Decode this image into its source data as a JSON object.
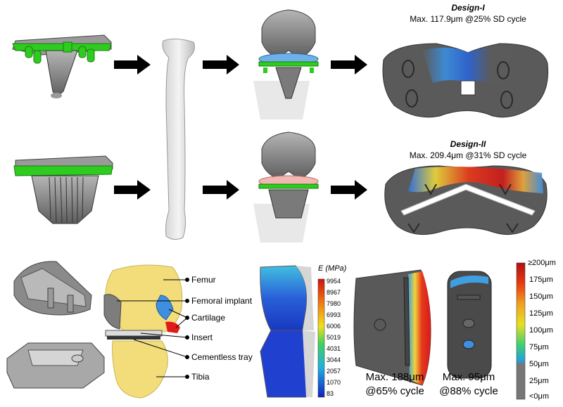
{
  "designs": [
    {
      "title": "Design-I",
      "result": "Max. 117.9μm @25% SD cycle"
    },
    {
      "title": "Design-II",
      "result": "Max. 209.4μm @31% SD cycle"
    }
  ],
  "anatomy_labels": [
    "Femur",
    "Femoral implant",
    "Cartilage",
    "Insert",
    "Cementless tray",
    "Tibia"
  ],
  "modulus_legend": {
    "title": "E (MPa)",
    "ticks": [
      "9954",
      "8967",
      "7980",
      "6993",
      "6006",
      "5019",
      "4031",
      "3044",
      "2057",
      "1070",
      "83"
    ]
  },
  "micromotion_results": [
    {
      "line1": "Max. 188μm",
      "line2": "@65% cycle"
    },
    {
      "line1": "Max. 95μm",
      "line2": "@88% cycle"
    }
  ],
  "micromotion_legend": {
    "ticks": [
      "≥200μm",
      "175μm",
      "150μm",
      "125μm",
      "100μm",
      "75μm",
      "50μm",
      "25μm",
      "<0μm"
    ]
  },
  "colors": {
    "implant_green": "#2ecc1f",
    "metal_grey": "#8a8a8a",
    "bone_yellow": "#f2dd7a",
    "cartilage_blue": "#3f8fe0",
    "insert_red": "#e01b1b"
  }
}
